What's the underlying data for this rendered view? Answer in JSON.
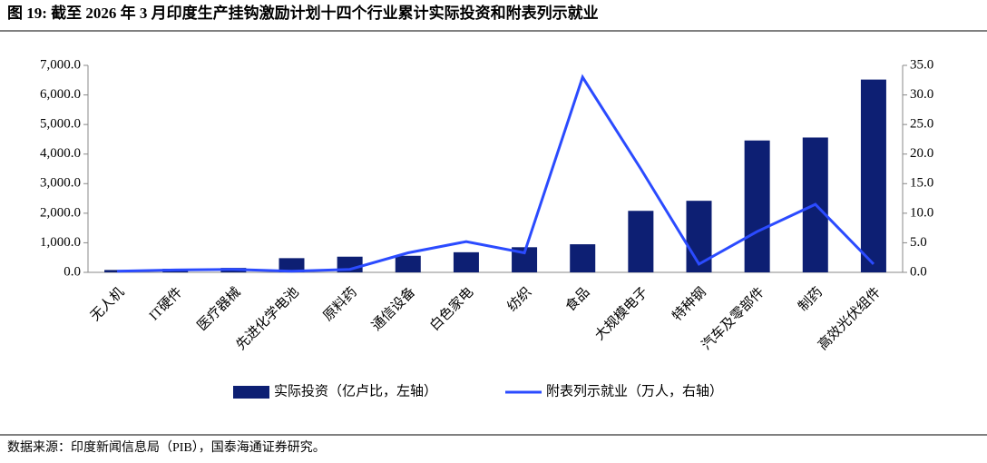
{
  "chart_data": {
    "type": "combo",
    "title": "图 19:  截至 2026 年 3 月印度生产挂钩激励计划十四个行业累计实际投资和附表列示就业",
    "source": "数据来源：印度新闻信息局（PIB），国泰海通证券研究。",
    "categories": [
      "无人机",
      "IT硬件",
      "医疗器械",
      "先进化学电池",
      "原料药",
      "通信设备",
      "白色家电",
      "纺织",
      "食品",
      "大规模电子",
      "特种钢",
      "汽车及零部件",
      "制药",
      "高效光伏组件"
    ],
    "series": [
      {
        "name": "实际投资（亿卢比，左轴）",
        "type": "bar",
        "color": "#0d1f73",
        "values": [
          80,
          120,
          150,
          480,
          530,
          560,
          680,
          850,
          950,
          2080,
          2420,
          4460,
          4560,
          6520
        ]
      },
      {
        "name": "附表列示就业（万人，右轴）",
        "type": "line",
        "axis": "y2",
        "color": "#2b4bff",
        "values": [
          0.2,
          0.4,
          0.5,
          0.2,
          0.5,
          3.3,
          5.2,
          3.3,
          33,
          17.5,
          1.4,
          6.9,
          11.5,
          1.4
        ]
      }
    ],
    "ylim": [
      0,
      7000
    ],
    "yticks": [
      {
        "value": 0,
        "label": "0.0"
      },
      {
        "value": 1000,
        "label": "1,000.0"
      },
      {
        "value": 2000,
        "label": "2,000.0"
      },
      {
        "value": 3000,
        "label": "3,000.0"
      },
      {
        "value": 4000,
        "label": "4,000.0"
      },
      {
        "value": 5000,
        "label": "5,000.0"
      },
      {
        "value": 6000,
        "label": "6,000.0"
      },
      {
        "value": 7000,
        "label": "7,000.0"
      }
    ],
    "y2lim": [
      0,
      35
    ],
    "y2ticks": [
      {
        "value": 0,
        "label": "0.0"
      },
      {
        "value": 5,
        "label": "5.0"
      },
      {
        "value": 10,
        "label": "10.0"
      },
      {
        "value": 15,
        "label": "15.0"
      },
      {
        "value": 20,
        "label": "20.0"
      },
      {
        "value": 25,
        "label": "25.0"
      },
      {
        "value": 30,
        "label": "30.0"
      },
      {
        "value": 35,
        "label": "35.0"
      }
    ],
    "legend": "bottom"
  }
}
